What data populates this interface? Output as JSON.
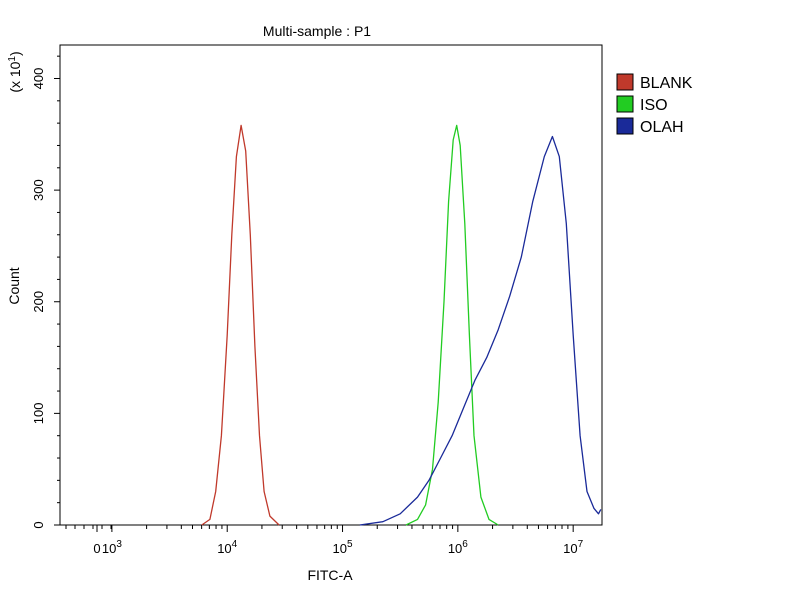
{
  "chart_data": {
    "type": "line",
    "title": "Multi-sample : P1",
    "xlabel": "FITC-A",
    "ylabel": "Count",
    "y_multiplier_label": "(x 10",
    "y_multiplier_exp": "1",
    "y_multiplier_close": ")",
    "x_scale": "biexponential (log with zero)",
    "xlim_log10": [
      2.55,
      7.25
    ],
    "ylim": [
      0,
      430
    ],
    "x_ticks": [
      {
        "base": "0",
        "exp": "",
        "log10": 2.4
      },
      {
        "base": "10",
        "exp": "3",
        "log10": 3
      },
      {
        "base": "10",
        "exp": "4",
        "log10": 4
      },
      {
        "base": "10",
        "exp": "5",
        "log10": 5
      },
      {
        "base": "10",
        "exp": "6",
        "log10": 6
      },
      {
        "base": "10",
        "exp": "7",
        "log10": 7
      }
    ],
    "y_ticks": [
      0,
      100,
      200,
      300,
      400
    ],
    "legend_position": "right",
    "series": [
      {
        "name": "BLANK",
        "color": "#c0392b",
        "points": [
          [
            3.78,
            0
          ],
          [
            3.85,
            5
          ],
          [
            3.9,
            30
          ],
          [
            3.95,
            80
          ],
          [
            4.0,
            170
          ],
          [
            4.04,
            260
          ],
          [
            4.08,
            330
          ],
          [
            4.12,
            358
          ],
          [
            4.16,
            335
          ],
          [
            4.2,
            260
          ],
          [
            4.24,
            160
          ],
          [
            4.28,
            80
          ],
          [
            4.32,
            30
          ],
          [
            4.37,
            8
          ],
          [
            4.45,
            0
          ]
        ]
      },
      {
        "name": "ISO",
        "color": "#22cc22",
        "points": [
          [
            5.55,
            0
          ],
          [
            5.65,
            5
          ],
          [
            5.72,
            18
          ],
          [
            5.78,
            50
          ],
          [
            5.83,
            110
          ],
          [
            5.88,
            200
          ],
          [
            5.92,
            290
          ],
          [
            5.96,
            345
          ],
          [
            5.99,
            358
          ],
          [
            6.02,
            340
          ],
          [
            6.06,
            270
          ],
          [
            6.1,
            170
          ],
          [
            6.14,
            80
          ],
          [
            6.2,
            25
          ],
          [
            6.27,
            5
          ],
          [
            6.35,
            0
          ]
        ]
      },
      {
        "name": "OLAH",
        "color": "#1a2a99",
        "points": [
          [
            5.15,
            0
          ],
          [
            5.35,
            3
          ],
          [
            5.5,
            10
          ],
          [
            5.65,
            25
          ],
          [
            5.75,
            40
          ],
          [
            5.85,
            60
          ],
          [
            5.95,
            80
          ],
          [
            6.05,
            105
          ],
          [
            6.15,
            130
          ],
          [
            6.25,
            150
          ],
          [
            6.35,
            175
          ],
          [
            6.45,
            205
          ],
          [
            6.55,
            240
          ],
          [
            6.65,
            290
          ],
          [
            6.75,
            330
          ],
          [
            6.82,
            348
          ],
          [
            6.88,
            330
          ],
          [
            6.94,
            270
          ],
          [
            7.0,
            170
          ],
          [
            7.06,
            80
          ],
          [
            7.12,
            30
          ],
          [
            7.18,
            15
          ],
          [
            7.22,
            10
          ],
          [
            7.24,
            14
          ]
        ]
      }
    ]
  }
}
